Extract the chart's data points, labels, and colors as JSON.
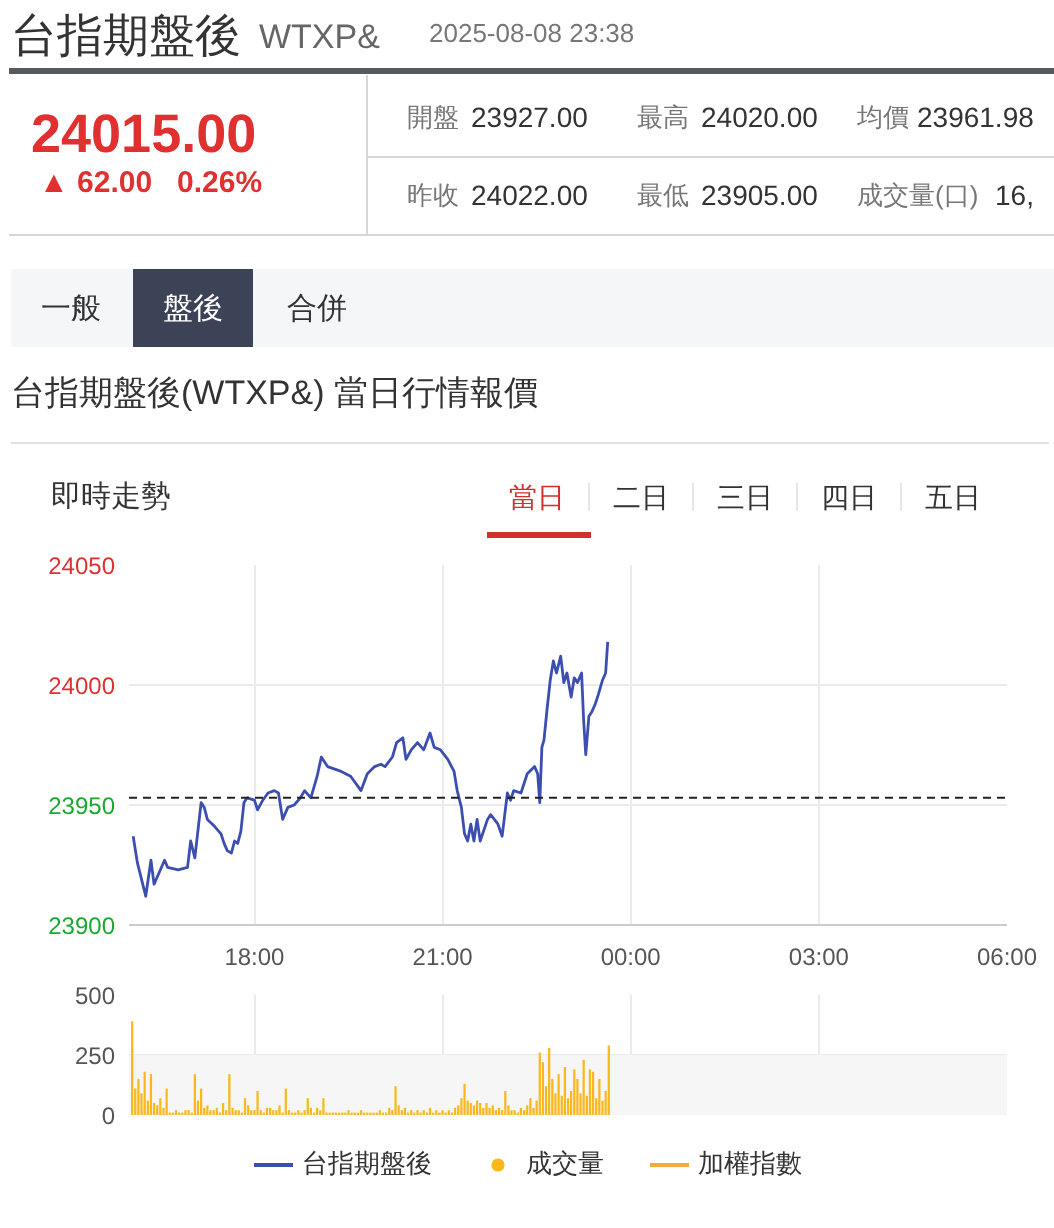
{
  "chart_data": [
    {
      "type": "other",
      "title": "台指期盤後",
      "subtitle": "WTXP&",
      "annotations": [
        "2025-08-08 23:38",
        "24015.00",
        "▲ 62.00",
        "0.26%",
        "開盤",
        "23927.00",
        "最高",
        "24020.00",
        "均價",
        "23961.98",
        "昨收",
        "24022.00",
        "最低",
        "23905.00",
        "成交量(口)",
        "16,",
        "一般",
        "盤後",
        "合併",
        "台指期盤後(WTXP&) 當日行情報價"
      ]
    },
    {
      "type": "line",
      "title": "即時走勢",
      "annotations": [
        "當日",
        "二日",
        "三日",
        "四日",
        "五日"
      ],
      "series": [
        {
          "name": "台指期盤後",
          "color": "#3c4fb0",
          "x": [
            "2025-08-08T16:04",
            "2025-08-08T16:08",
            "2025-08-08T16:16",
            "2025-08-08T16:21",
            "2025-08-08T16:24",
            "2025-08-08T16:27",
            "2025-08-08T16:34",
            "2025-08-08T16:37",
            "2025-08-08T16:47",
            "2025-08-08T16:56",
            "2025-08-08T16:59",
            "2025-08-08T17:03",
            "2025-08-08T17:09",
            "2025-08-08T17:12",
            "2025-08-08T17:15",
            "2025-08-08T17:22",
            "2025-08-08T17:28",
            "2025-08-08T17:31",
            "2025-08-08T17:34",
            "2025-08-08T17:38",
            "2025-08-08T17:41",
            "2025-08-08T17:44",
            "2025-08-08T17:47",
            "2025-08-08T17:50",
            "2025-08-08T17:53",
            "2025-08-08T18:00",
            "2025-08-08T18:03",
            "2025-08-08T18:08",
            "2025-08-08T18:13",
            "2025-08-08T18:19",
            "2025-08-08T18:23",
            "2025-08-08T18:27",
            "2025-08-08T18:32",
            "2025-08-08T18:38",
            "2025-08-08T18:44",
            "2025-08-08T18:48",
            "2025-08-08T18:54",
            "2025-08-08T19:00",
            "2025-08-08T19:04",
            "2025-08-08T19:10",
            "2025-08-08T19:23",
            "2025-08-08T19:32",
            "2025-08-08T19:42",
            "2025-08-08T19:48",
            "2025-08-08T19:55",
            "2025-08-08T20:01",
            "2025-08-08T20:05",
            "2025-08-08T20:12",
            "2025-08-08T20:16",
            "2025-08-08T20:22",
            "2025-08-08T20:25",
            "2025-08-08T20:30",
            "2025-08-08T20:36",
            "2025-08-08T20:42",
            "2025-08-08T20:48",
            "2025-08-08T20:52",
            "2025-08-08T20:58",
            "2025-08-08T21:05",
            "2025-08-08T21:11",
            "2025-08-08T21:14",
            "2025-08-08T21:18",
            "2025-08-08T21:21",
            "2025-08-08T21:24",
            "2025-08-08T21:27",
            "2025-08-08T21:30",
            "2025-08-08T21:33",
            "2025-08-08T21:36",
            "2025-08-08T21:43",
            "2025-08-08T21:46",
            "2025-08-08T21:53",
            "2025-08-08T21:57",
            "2025-08-08T22:02",
            "2025-08-08T22:05",
            "2025-08-08T22:08",
            "2025-08-08T22:15",
            "2025-08-08T22:21",
            "2025-08-08T22:28",
            "2025-08-08T22:31",
            "2025-08-08T22:33",
            "2025-08-08T22:35",
            "2025-08-08T22:37",
            "2025-08-08T22:40",
            "2025-08-08T22:43",
            "2025-08-08T22:46",
            "2025-08-08T22:49",
            "2025-08-08T22:53",
            "2025-08-08T22:56",
            "2025-08-08T22:59",
            "2025-08-08T23:03",
            "2025-08-08T23:06",
            "2025-08-08T23:09",
            "2025-08-08T23:13",
            "2025-08-08T23:15",
            "2025-08-08T23:17",
            "2025-08-08T23:20",
            "2025-08-08T23:23",
            "2025-08-08T23:26",
            "2025-08-08T23:29",
            "2025-08-08T23:33",
            "2025-08-08T23:36",
            "2025-08-08T23:38"
          ],
          "values": [
            23937,
            23926,
            23912,
            23927,
            23917,
            23920,
            23927,
            23924,
            23923,
            23924,
            23935,
            23928,
            23951,
            23949,
            23944,
            23941,
            23938,
            23934,
            23931,
            23930,
            23935,
            23934,
            23939,
            23951,
            23953,
            23952,
            23948,
            23952,
            23955,
            23956,
            23955,
            23944,
            23949,
            23950,
            23953,
            23956,
            23953,
            23962,
            23970,
            23966,
            23964,
            23962,
            23956,
            23963,
            23966,
            23967,
            23966,
            23970,
            23976,
            23978,
            23969,
            23973,
            23976,
            23973,
            23980,
            23974,
            23973,
            23969,
            23964,
            23956,
            23949,
            23938,
            23935,
            23942,
            23935,
            23944,
            23935,
            23944,
            23946,
            23942,
            23937,
            23955,
            23952,
            23956,
            23955,
            23963,
            23966,
            23963,
            23951,
            23974,
            23977,
            23990,
            24002,
            24010,
            24005,
            24012,
            24001,
            24005,
            23995,
            24003,
            24001,
            24005,
            23985,
            23971,
            23987,
            23989,
            23992,
            23996,
            24002,
            24005,
            24018
          ]
        }
      ],
      "xlim": [
        "2025-08-08T16:00",
        "2025-08-09T06:00"
      ],
      "xticks": [
        {
          "value": "2025-08-08T18:00",
          "label": "18:00"
        },
        {
          "value": "2025-08-08T21:00",
          "label": "21:00"
        },
        {
          "value": "2025-08-09T00:00",
          "label": "00:00"
        },
        {
          "value": "2025-08-09T03:00",
          "label": "03:00"
        },
        {
          "value": "2025-08-09T06:00",
          "label": "06:00"
        }
      ],
      "ylim": [
        23900,
        24050
      ],
      "yticks": [
        23900,
        23950,
        24000,
        24050
      ],
      "ref_lines": [
        {
          "axis": "y",
          "value": 23953,
          "color": "#222222",
          "line_style": "dashed"
        }
      ],
      "grid": true,
      "legend": "bottom"
    },
    {
      "type": "bar",
      "x": [
        "2025-08-08T16:03",
        "2025-08-08T16:06",
        "2025-08-08T16:09",
        "2025-08-08T16:12",
        "2025-08-08T16:15",
        "2025-08-08T16:18",
        "2025-08-08T16:21",
        "2025-08-08T16:24",
        "2025-08-08T16:27",
        "2025-08-08T16:30",
        "2025-08-08T16:33",
        "2025-08-08T16:36",
        "2025-08-08T16:39",
        "2025-08-08T16:42",
        "2025-08-08T16:45",
        "2025-08-08T16:48",
        "2025-08-08T16:51",
        "2025-08-08T16:54",
        "2025-08-08T16:57",
        "2025-08-08T17:00",
        "2025-08-08T17:03",
        "2025-08-08T17:06",
        "2025-08-08T17:09",
        "2025-08-08T17:12",
        "2025-08-08T17:15",
        "2025-08-08T17:18",
        "2025-08-08T17:21",
        "2025-08-08T17:24",
        "2025-08-08T17:27",
        "2025-08-08T17:30",
        "2025-08-08T17:33",
        "2025-08-08T17:36",
        "2025-08-08T17:39",
        "2025-08-08T17:42",
        "2025-08-08T17:45",
        "2025-08-08T17:48",
        "2025-08-08T17:51",
        "2025-08-08T17:54",
        "2025-08-08T17:57",
        "2025-08-08T18:00",
        "2025-08-08T18:03",
        "2025-08-08T18:06",
        "2025-08-08T18:09",
        "2025-08-08T18:12",
        "2025-08-08T18:15",
        "2025-08-08T18:18",
        "2025-08-08T18:21",
        "2025-08-08T18:24",
        "2025-08-08T18:27",
        "2025-08-08T18:30",
        "2025-08-08T18:33",
        "2025-08-08T18:36",
        "2025-08-08T18:39",
        "2025-08-08T18:42",
        "2025-08-08T18:45",
        "2025-08-08T18:48",
        "2025-08-08T18:51",
        "2025-08-08T18:54",
        "2025-08-08T18:57",
        "2025-08-08T19:00",
        "2025-08-08T19:03",
        "2025-08-08T19:06",
        "2025-08-08T19:09",
        "2025-08-08T19:12",
        "2025-08-08T19:15",
        "2025-08-08T19:18",
        "2025-08-08T19:21",
        "2025-08-08T19:24",
        "2025-08-08T19:27",
        "2025-08-08T19:30",
        "2025-08-08T19:33",
        "2025-08-08T19:36",
        "2025-08-08T19:39",
        "2025-08-08T19:42",
        "2025-08-08T19:45",
        "2025-08-08T19:48",
        "2025-08-08T19:51",
        "2025-08-08T19:54",
        "2025-08-08T19:57",
        "2025-08-08T20:00",
        "2025-08-08T20:03",
        "2025-08-08T20:06",
        "2025-08-08T20:09",
        "2025-08-08T20:12",
        "2025-08-08T20:15",
        "2025-08-08T20:18",
        "2025-08-08T20:21",
        "2025-08-08T20:24",
        "2025-08-08T20:27",
        "2025-08-08T20:30",
        "2025-08-08T20:33",
        "2025-08-08T20:36",
        "2025-08-08T20:39",
        "2025-08-08T20:42",
        "2025-08-08T20:45",
        "2025-08-08T20:48",
        "2025-08-08T20:51",
        "2025-08-08T20:54",
        "2025-08-08T20:57",
        "2025-08-08T21:00",
        "2025-08-08T21:03",
        "2025-08-08T21:06",
        "2025-08-08T21:09",
        "2025-08-08T21:12",
        "2025-08-08T21:15",
        "2025-08-08T21:18",
        "2025-08-08T21:21",
        "2025-08-08T21:24",
        "2025-08-08T21:27",
        "2025-08-08T21:30",
        "2025-08-08T21:33",
        "2025-08-08T21:36",
        "2025-08-08T21:39",
        "2025-08-08T21:42",
        "2025-08-08T21:45",
        "2025-08-08T21:48",
        "2025-08-08T21:51",
        "2025-08-08T21:54",
        "2025-08-08T21:57",
        "2025-08-08T22:00",
        "2025-08-08T22:03",
        "2025-08-08T22:06",
        "2025-08-08T22:09",
        "2025-08-08T22:12",
        "2025-08-08T22:15",
        "2025-08-08T22:18",
        "2025-08-08T22:21",
        "2025-08-08T22:24",
        "2025-08-08T22:27",
        "2025-08-08T22:30",
        "2025-08-08T22:33",
        "2025-08-08T22:36",
        "2025-08-08T22:39",
        "2025-08-08T22:42",
        "2025-08-08T22:45",
        "2025-08-08T22:48",
        "2025-08-08T22:51",
        "2025-08-08T22:54",
        "2025-08-08T22:57",
        "2025-08-08T23:00",
        "2025-08-08T23:03",
        "2025-08-08T23:06",
        "2025-08-08T23:09",
        "2025-08-08T23:12",
        "2025-08-08T23:15",
        "2025-08-08T23:18",
        "2025-08-08T23:21",
        "2025-08-08T23:24",
        "2025-08-08T23:27",
        "2025-08-08T23:30",
        "2025-08-08T23:33",
        "2025-08-08T23:36",
        "2025-08-08T23:39"
      ],
      "series": [
        {
          "name": "成交量",
          "color": "#fbb81d",
          "values": [
            390,
            110,
            150,
            90,
            180,
            60,
            170,
            50,
            40,
            70,
            30,
            110,
            10,
            10,
            20,
            10,
            10,
            20,
            20,
            10,
            170,
            60,
            110,
            30,
            40,
            20,
            20,
            30,
            10,
            50,
            20,
            170,
            30,
            20,
            20,
            10,
            70,
            40,
            20,
            20,
            100,
            20,
            10,
            30,
            30,
            20,
            20,
            40,
            10,
            110,
            20,
            10,
            10,
            20,
            10,
            20,
            70,
            30,
            10,
            30,
            20,
            70,
            10,
            10,
            10,
            10,
            10,
            10,
            10,
            20,
            10,
            10,
            10,
            20,
            10,
            10,
            10,
            10,
            10,
            20,
            10,
            10,
            30,
            20,
            120,
            40,
            20,
            30,
            10,
            20,
            10,
            20,
            10,
            20,
            10,
            30,
            10,
            20,
            10,
            20,
            10,
            20,
            10,
            30,
            40,
            70,
            130,
            60,
            50,
            40,
            60,
            50,
            30,
            50,
            30,
            40,
            20,
            30,
            20,
            100,
            40,
            20,
            20,
            10,
            30,
            20,
            40,
            70,
            30,
            60,
            260,
            220,
            120,
            280,
            150,
            90,
            170,
            80,
            200,
            70,
            100,
            190,
            150,
            90,
            230,
            80,
            190,
            180,
            70,
            150,
            60,
            100,
            290
          ]
        },
        {
          "name": "加權指數",
          "type": "line",
          "color": "#f7a93a",
          "values": [
            null,
            null,
            null,
            null,
            null,
            null,
            null,
            null,
            null,
            null,
            null,
            null,
            null,
            null,
            null,
            null,
            null,
            null,
            null,
            null,
            null,
            null,
            null,
            null,
            null,
            null,
            null,
            null,
            null,
            null,
            null,
            null,
            null,
            null,
            null,
            null,
            null,
            null,
            null,
            null,
            null,
            null,
            null,
            null,
            null,
            null,
            null,
            null,
            null,
            null,
            null,
            null,
            null,
            null,
            null,
            null,
            null,
            null,
            null,
            null,
            null,
            null,
            null,
            null,
            null,
            null,
            null,
            null,
            null,
            null,
            null,
            null,
            null,
            null,
            null,
            null,
            null,
            null,
            null,
            null,
            null,
            null,
            null,
            null,
            null,
            null,
            null,
            null,
            null,
            null,
            null,
            null,
            null,
            null,
            null,
            null,
            null,
            null,
            null,
            null,
            null,
            null,
            null,
            null,
            null,
            null,
            null,
            null,
            null,
            null,
            null,
            null,
            null,
            null,
            null,
            null,
            null,
            null,
            null,
            null,
            null,
            null,
            null,
            null,
            null,
            null,
            null,
            null,
            null,
            null,
            null,
            null,
            null,
            null,
            null,
            null,
            null,
            null,
            null,
            null,
            null,
            null,
            null,
            null,
            null,
            null,
            null,
            null,
            null,
            null,
            null,
            null,
            null
          ]
        }
      ],
      "xlim": [
        "2025-08-08T16:00",
        "2025-08-09T06:00"
      ],
      "xticks": [
        {
          "value": "2025-08-08T18:00",
          "label": null
        },
        {
          "value": "2025-08-08T21:00",
          "label": null
        },
        {
          "value": "2025-08-09T00:00",
          "label": null
        },
        {
          "value": "2025-08-09T03:00",
          "label": null
        },
        {
          "value": "2025-08-09T06:00",
          "label": null
        }
      ],
      "ylim": [
        0,
        500
      ],
      "yticks": [
        0,
        250,
        500
      ],
      "tick_labels": "y",
      "bands": [
        {
          "axis": "y",
          "from": 0,
          "to": 250,
          "color": "#f6f6f6"
        }
      ],
      "grid": true,
      "legend": "bottom"
    }
  ]
}
